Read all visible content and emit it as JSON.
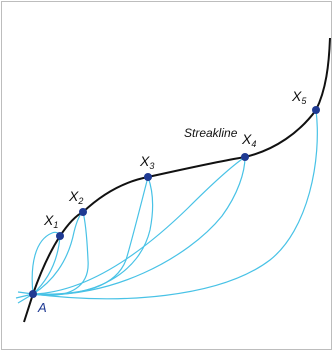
{
  "diagram": {
    "title": "Streakline",
    "source_point": {
      "label": "A"
    },
    "points": [
      {
        "id": "x1",
        "base": "X",
        "sub": "1"
      },
      {
        "id": "x2",
        "base": "X",
        "sub": "2"
      },
      {
        "id": "x3",
        "base": "X",
        "sub": "3"
      },
      {
        "id": "x4",
        "base": "X",
        "sub": "4"
      },
      {
        "id": "x5",
        "base": "X",
        "sub": "5"
      }
    ],
    "colors": {
      "streakline": "#111111",
      "pathlines": "#48c2e6",
      "points": "#1f3a93",
      "frame": "#bdbdbd"
    }
  }
}
